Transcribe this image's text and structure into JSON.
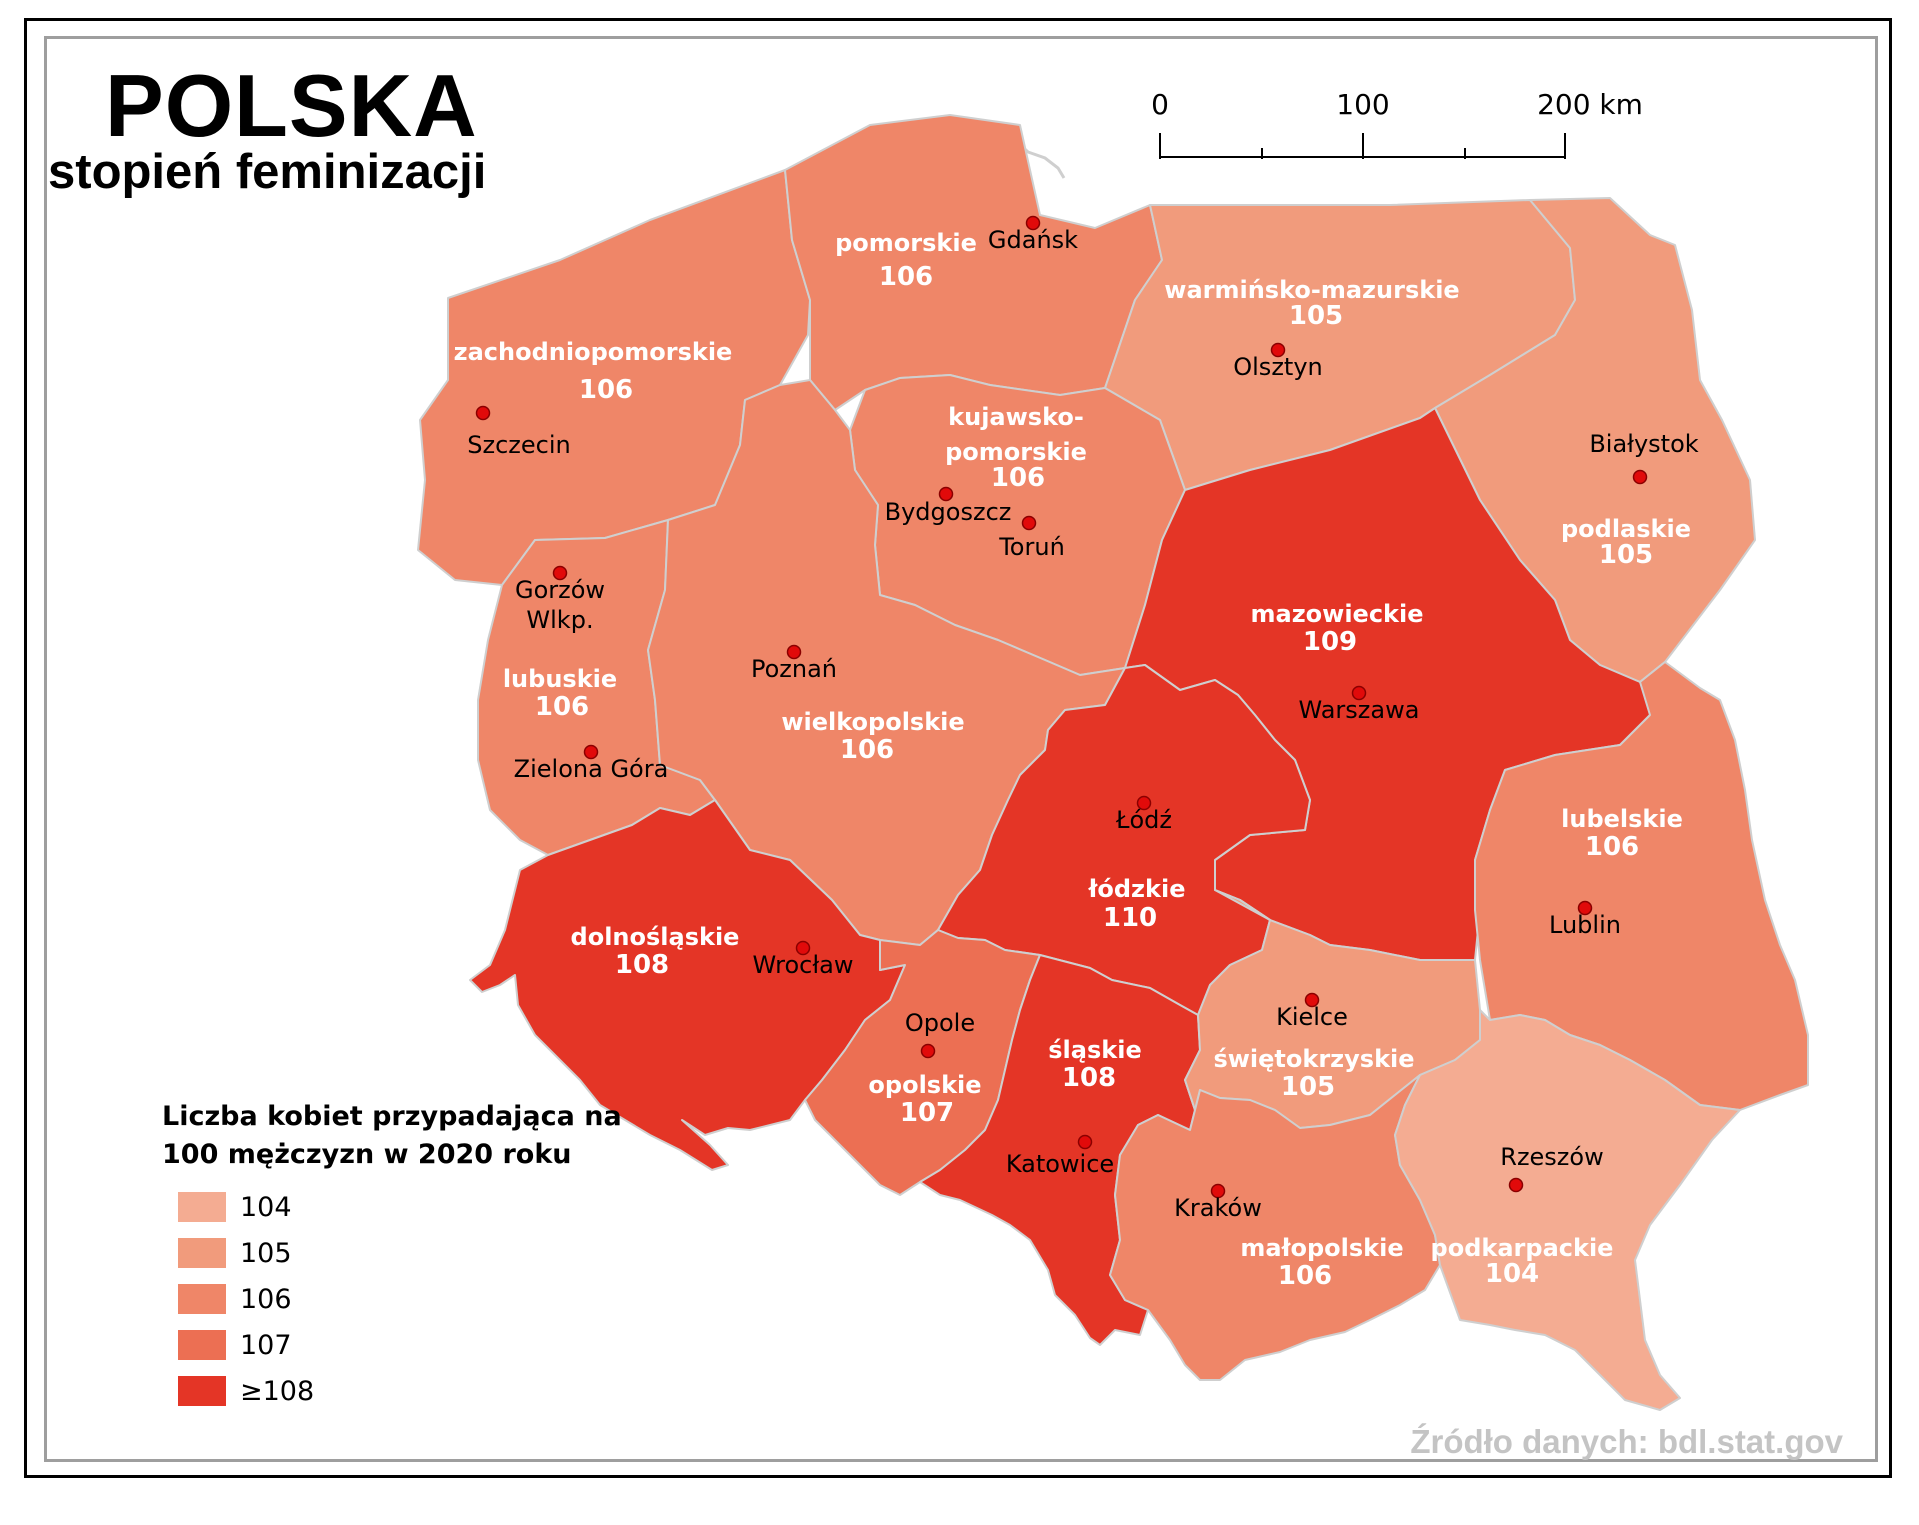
{
  "title": "POLSKA",
  "subtitle": "stopień feminizacji",
  "scale_bar": {
    "labels": [
      "0",
      "100",
      "200 km"
    ]
  },
  "legend": {
    "title": "Liczba kobiet przypadająca na 100 mężczyzn w 2020 roku",
    "items": [
      {
        "label": "104",
        "color": "#f4ac92"
      },
      {
        "label": "105",
        "color": "#f19b7c"
      },
      {
        "label": "106",
        "color": "#ef8668"
      },
      {
        "label": "107",
        "color": "#ec6f53"
      },
      {
        "label": "≥108",
        "color": "#e43526"
      }
    ]
  },
  "source": "Źródło danych: bdl.stat.gov",
  "regions": [
    {
      "id": "zachodniopomorskie",
      "name": "zachodniopomorskie",
      "value": "106",
      "color": "#ef8668"
    },
    {
      "id": "pomorskie",
      "name": "pomorskie",
      "value": "106",
      "color": "#ef8668"
    },
    {
      "id": "warminsko-mazurskie",
      "name": "warmińsko-mazurskie",
      "value": "105",
      "color": "#f19b7c"
    },
    {
      "id": "podlaskie",
      "name": "podlaskie",
      "value": "105",
      "color": "#f19b7c"
    },
    {
      "id": "kujawsko-pomorskie",
      "name_lines": [
        "kujawsko-",
        "pomorskie"
      ],
      "value": "106",
      "color": "#ef8668"
    },
    {
      "id": "lubuskie",
      "name": "lubuskie",
      "value": "106",
      "color": "#ef8668"
    },
    {
      "id": "wielkopolskie",
      "name": "wielkopolskie",
      "value": "106",
      "color": "#ef8668"
    },
    {
      "id": "mazowieckie",
      "name": "mazowieckie",
      "value": "109",
      "color": "#e43526"
    },
    {
      "id": "lodzkie",
      "name": "łódzkie",
      "value": "110",
      "color": "#e43526"
    },
    {
      "id": "lubelskie",
      "name": "lubelskie",
      "value": "106",
      "color": "#ef8668"
    },
    {
      "id": "dolnoslaskie",
      "name": "dolnośląskie",
      "value": "108",
      "color": "#e43526"
    },
    {
      "id": "opolskie",
      "name": "opolskie",
      "value": "107",
      "color": "#ec6f53"
    },
    {
      "id": "slaskie",
      "name": "śląskie",
      "value": "108",
      "color": "#e43526"
    },
    {
      "id": "swietokrzyskie",
      "name": "świętokrzyskie",
      "value": "105",
      "color": "#f19b7c"
    },
    {
      "id": "malopolskie",
      "name": "małopolskie",
      "value": "106",
      "color": "#ef8668"
    },
    {
      "id": "podkarpackie",
      "name": "podkarpackie",
      "value": "104",
      "color": "#f4ac92"
    }
  ],
  "cities": {
    "gdansk": "Gdańsk",
    "olsztyn": "Olsztyn",
    "szczecin": "Szczecin",
    "bialystok": "Białystok",
    "bydgoszcz": "Bydgoszcz",
    "torun": "Toruń",
    "gorzow_1": "Gorzów",
    "gorzow_2": "Wlkp.",
    "poznan": "Poznań",
    "warszawa": "Warszawa",
    "zielona_gora": "Zielona Góra",
    "lodz": "Łódź",
    "lublin": "Lublin",
    "wroclaw": "Wrocław",
    "opole": "Opole",
    "kielce": "Kielce",
    "katowice": "Katowice",
    "rzeszow": "Rzeszów",
    "krakow": "Kraków"
  }
}
